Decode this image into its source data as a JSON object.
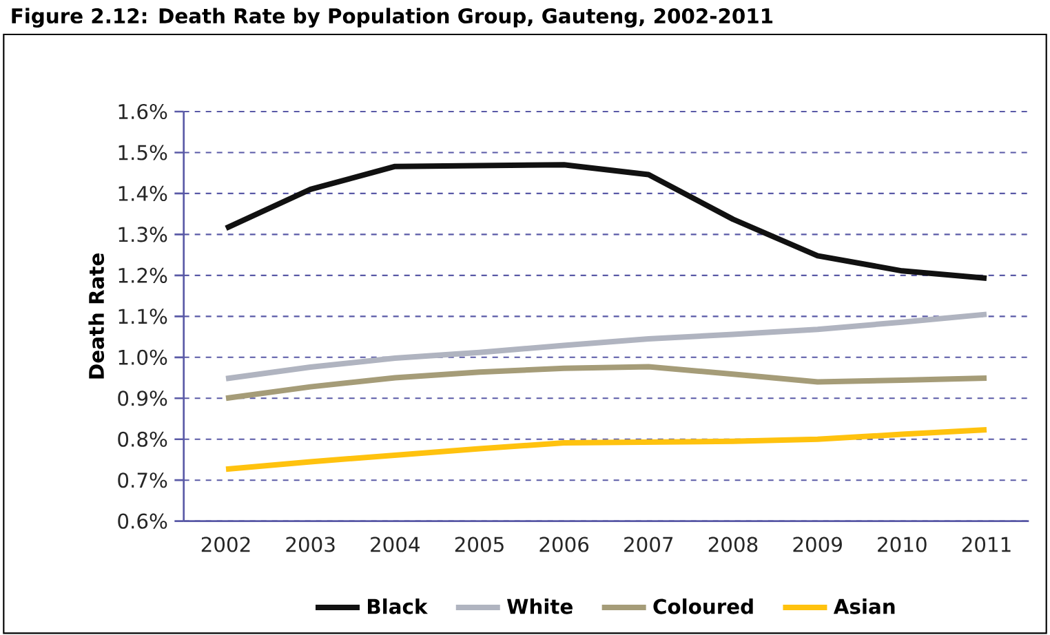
{
  "chart_data": {
    "type": "line",
    "title": "Figure 2.12: Death Rate by Population Group, Gauteng, 2002-2011",
    "ylabel": "Death Rate",
    "categories": [
      "2002",
      "2003",
      "2004",
      "2005",
      "2006",
      "2007",
      "2008",
      "2009",
      "2010",
      "2011"
    ],
    "series": [
      {
        "name": "Black",
        "color": "#111111",
        "values": [
          1.315,
          1.41,
          1.466,
          1.468,
          1.47,
          1.446,
          1.337,
          1.248,
          1.211,
          1.193
        ]
      },
      {
        "name": "White",
        "color": "#b0b4c0",
        "values": [
          0.948,
          0.976,
          0.998,
          1.012,
          1.029,
          1.045,
          1.056,
          1.068,
          1.086,
          1.105
        ]
      },
      {
        "name": "Coloured",
        "color": "#a59c78",
        "values": [
          0.9,
          0.928,
          0.95,
          0.964,
          0.973,
          0.977,
          0.959,
          0.94,
          0.944,
          0.949
        ]
      },
      {
        "name": "Asian",
        "color": "#ffc20e",
        "values": [
          0.727,
          0.745,
          0.761,
          0.777,
          0.791,
          0.793,
          0.795,
          0.8,
          0.812,
          0.823
        ]
      }
    ],
    "ylim": [
      0.6,
      1.6
    ],
    "yticks": [
      {
        "value": 0.6,
        "label": "0.6%"
      },
      {
        "value": 0.7,
        "label": "0.7%"
      },
      {
        "value": 0.8,
        "label": "0.8%"
      },
      {
        "value": 0.9,
        "label": "0.9%"
      },
      {
        "value": 1.0,
        "label": "1.0%"
      },
      {
        "value": 1.1,
        "label": "1.1%"
      },
      {
        "value": 1.2,
        "label": "1.2%"
      },
      {
        "value": 1.3,
        "label": "1.3%"
      },
      {
        "value": 1.4,
        "label": "1.4%"
      },
      {
        "value": 1.5,
        "label": "1.5%"
      },
      {
        "value": 1.6,
        "label": "1.6%"
      }
    ],
    "grid": "y",
    "legend": "bottom",
    "marker": "none",
    "line_style": "solid"
  }
}
